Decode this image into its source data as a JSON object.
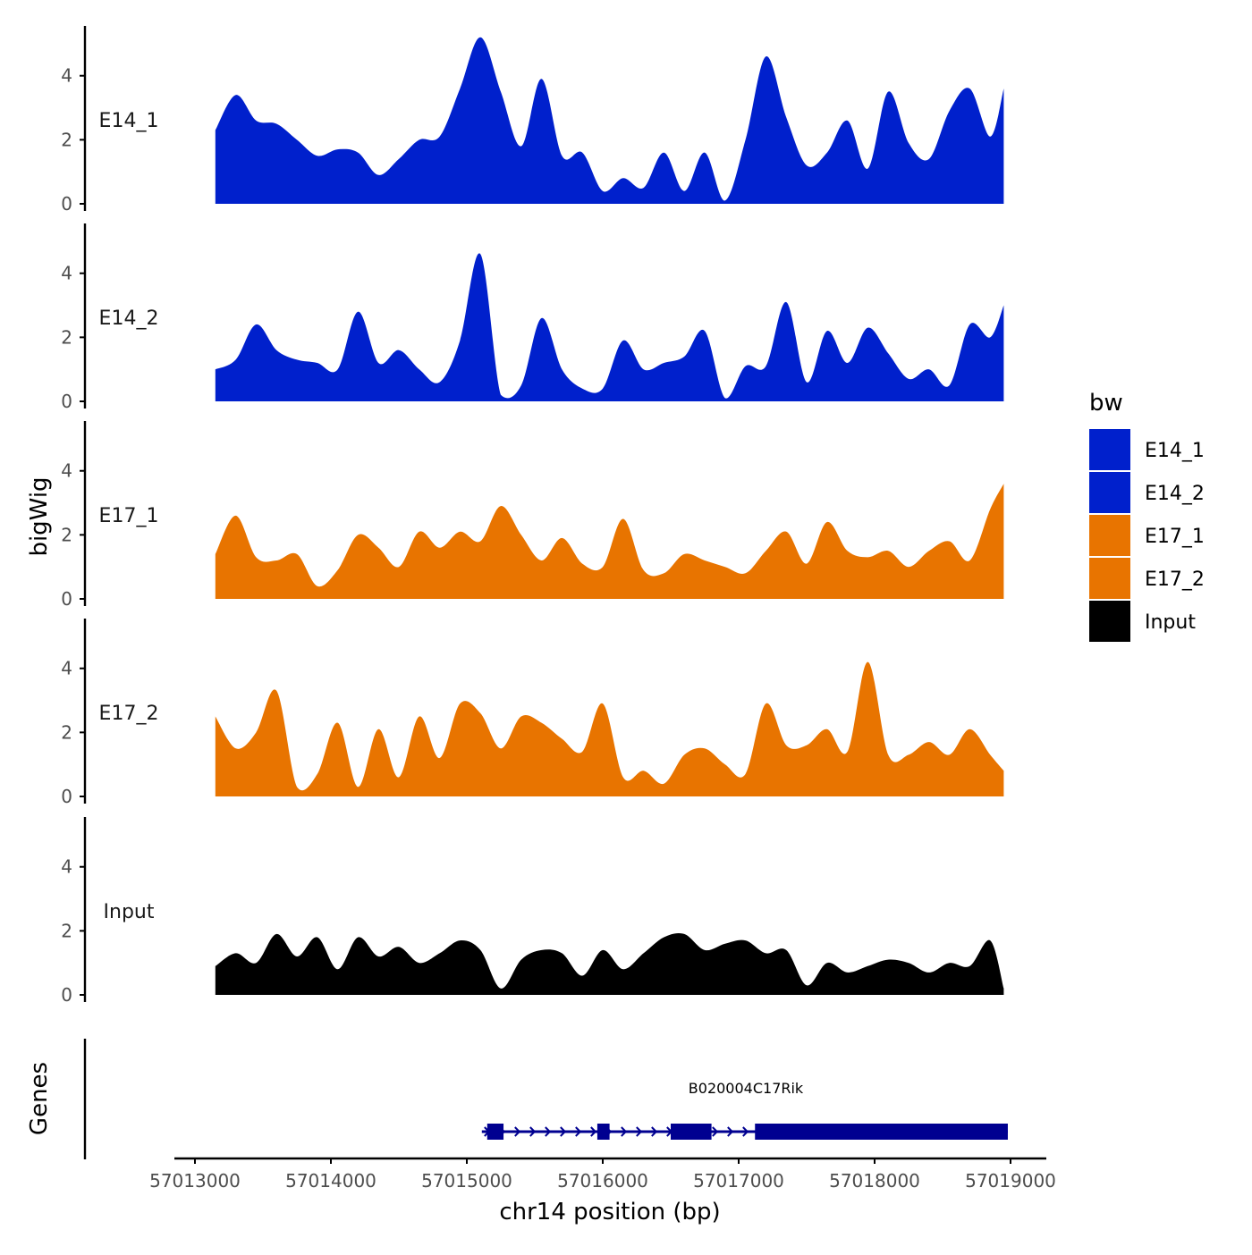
{
  "chart_data": {
    "type": "area",
    "ylabel": "bigWig",
    "xlabel": "chr14 position (bp)",
    "genes_label": "Genes",
    "ylim": [
      0,
      5.5
    ],
    "yticks": [
      0,
      2,
      4
    ],
    "xlim": [
      57012850,
      57019300
    ],
    "xticks": [
      57013000,
      57014000,
      57015000,
      57016000,
      57017000,
      57018000,
      57019000
    ],
    "xtick_labels": [
      "57013000",
      "57014000",
      "57015000",
      "57016000",
      "57017000",
      "57018000",
      "57019000"
    ],
    "legend": {
      "title": "bw",
      "position": "right",
      "entries": [
        {
          "label": "E14_1",
          "color": "#0020CC"
        },
        {
          "label": "E14_2",
          "color": "#0020CC"
        },
        {
          "label": "E17_1",
          "color": "#E87400"
        },
        {
          "label": "E17_2",
          "color": "#E87400"
        },
        {
          "label": "Input",
          "color": "#000000"
        }
      ]
    },
    "x": [
      57013150,
      57013300,
      57013450,
      57013600,
      57013750,
      57013900,
      57014050,
      57014200,
      57014350,
      57014500,
      57014650,
      57014800,
      57014950,
      57015100,
      57015250,
      57015400,
      57015550,
      57015700,
      57015850,
      57016000,
      57016150,
      57016300,
      57016450,
      57016600,
      57016750,
      57016900,
      57017050,
      57017200,
      57017350,
      57017500,
      57017650,
      57017800,
      57017950,
      57018100,
      57018250,
      57018400,
      57018550,
      57018700,
      57018850,
      57018950
    ],
    "series": [
      {
        "name": "E14_1",
        "color": "#0020CC",
        "values": [
          2.3,
          3.4,
          2.6,
          2.5,
          2.0,
          1.5,
          1.7,
          1.6,
          0.9,
          1.4,
          2.0,
          2.1,
          3.6,
          5.2,
          3.5,
          1.8,
          3.9,
          1.5,
          1.6,
          0.4,
          0.8,
          0.5,
          1.6,
          0.4,
          1.6,
          0.1,
          2.0,
          4.6,
          2.7,
          1.2,
          1.6,
          2.6,
          1.1,
          3.5,
          1.9,
          1.4,
          2.9,
          3.6,
          2.1,
          3.6
        ]
      },
      {
        "name": "E14_2",
        "color": "#0020CC",
        "values": [
          1.0,
          1.3,
          2.4,
          1.6,
          1.3,
          1.2,
          1.0,
          2.8,
          1.2,
          1.6,
          1.0,
          0.6,
          1.9,
          4.6,
          0.2,
          0.5,
          2.6,
          1.0,
          0.4,
          0.4,
          1.9,
          1.0,
          1.2,
          1.4,
          2.2,
          0.1,
          1.1,
          1.1,
          3.1,
          0.6,
          2.2,
          1.2,
          2.3,
          1.5,
          0.7,
          1.0,
          0.5,
          2.4,
          2.0,
          3.0
        ]
      },
      {
        "name": "E17_1",
        "color": "#E87400",
        "values": [
          1.4,
          2.6,
          1.3,
          1.2,
          1.4,
          0.4,
          0.9,
          2.0,
          1.6,
          1.0,
          2.1,
          1.6,
          2.1,
          1.8,
          2.9,
          2.0,
          1.2,
          1.9,
          1.1,
          1.0,
          2.5,
          0.9,
          0.8,
          1.4,
          1.2,
          1.0,
          0.8,
          1.5,
          2.1,
          1.1,
          2.4,
          1.5,
          1.3,
          1.5,
          1.0,
          1.5,
          1.8,
          1.2,
          2.8,
          3.6
        ]
      },
      {
        "name": "E17_2",
        "color": "#E87400",
        "values": [
          2.5,
          1.5,
          2.0,
          3.3,
          0.3,
          0.7,
          2.3,
          0.3,
          2.1,
          0.6,
          2.5,
          1.2,
          2.9,
          2.6,
          1.5,
          2.5,
          2.3,
          1.8,
          1.4,
          2.9,
          0.6,
          0.8,
          0.4,
          1.3,
          1.5,
          1.0,
          0.7,
          2.9,
          1.6,
          1.6,
          2.1,
          1.4,
          4.2,
          1.3,
          1.3,
          1.7,
          1.3,
          2.1,
          1.3,
          0.8
        ]
      },
      {
        "name": "Input",
        "color": "#000000",
        "values": [
          0.9,
          1.3,
          1.0,
          1.9,
          1.2,
          1.8,
          0.8,
          1.8,
          1.2,
          1.5,
          1.0,
          1.3,
          1.7,
          1.4,
          0.2,
          1.1,
          1.4,
          1.3,
          0.6,
          1.4,
          0.8,
          1.3,
          1.8,
          1.9,
          1.4,
          1.6,
          1.7,
          1.3,
          1.4,
          0.3,
          1.0,
          0.7,
          0.9,
          1.1,
          1.0,
          0.7,
          1.0,
          0.9,
          1.7,
          0.2
        ]
      }
    ],
    "gene": {
      "name": "B020004C17Rik",
      "start": 57015150,
      "end": 57018980,
      "strand": "+",
      "exons": [
        [
          57015150,
          57015270
        ],
        [
          57015960,
          57016050
        ],
        [
          57016500,
          57016800
        ],
        [
          57017120,
          57018980
        ]
      ]
    }
  }
}
